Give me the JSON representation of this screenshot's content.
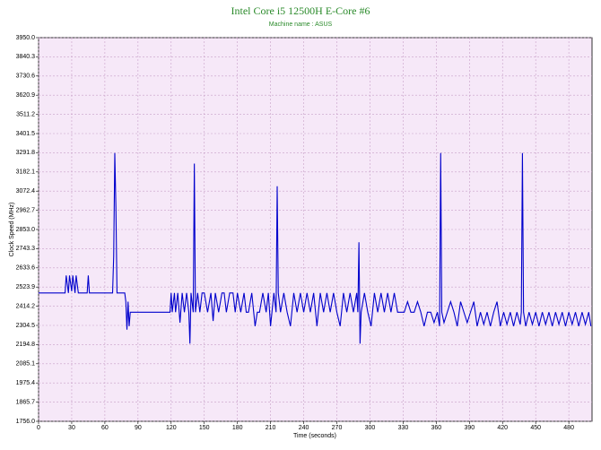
{
  "chart_data": {
    "type": "line",
    "title": "Intel Core i5 12500H E-Core #6",
    "subtitle": "Machine name : ASUS",
    "x_label": "Time (seconds)",
    "y_label": "Clock Speed (MHz)",
    "xlim": [
      0,
      501
    ],
    "xticks": [
      0,
      30,
      60,
      90,
      120,
      150,
      180,
      210,
      240,
      270,
      300,
      330,
      360,
      390,
      420,
      450,
      480
    ],
    "ylim": [
      1756,
      3950
    ],
    "yticks": [
      {
        "value": 1756,
        "label": "1756.0"
      },
      1865.7,
      1975.4,
      2085.1,
      2194.8,
      2304.5,
      2414.2,
      2523.9,
      2633.6,
      2743.3,
      {
        "value": 2853,
        "label": "2853.0"
      },
      2962.7,
      3072.4,
      3182.1,
      3291.8,
      3401.5,
      3511.2,
      3620.9,
      3730.6,
      3840.3,
      {
        "value": 3950,
        "label": "3950.0"
      }
    ],
    "grid": true,
    "x": [
      0,
      24,
      25,
      27,
      28,
      30,
      31,
      33,
      34,
      36,
      44,
      45,
      46,
      67,
      68,
      69,
      70,
      71,
      72,
      78,
      79,
      80,
      81,
      82,
      83,
      84,
      119,
      120,
      121,
      123,
      124,
      126,
      128,
      130,
      132,
      134,
      136,
      137,
      138,
      140,
      141,
      142,
      144,
      146,
      148,
      150,
      153,
      156,
      158,
      160,
      163,
      166,
      168,
      170,
      173,
      176,
      178,
      180,
      183,
      186,
      188,
      190,
      193,
      196,
      198,
      200,
      203,
      206,
      208,
      210,
      213,
      215,
      216,
      217,
      219,
      222,
      225,
      228,
      231,
      234,
      237,
      240,
      243,
      246,
      249,
      252,
      255,
      258,
      261,
      264,
      267,
      270,
      273,
      276,
      279,
      282,
      285,
      288,
      289,
      290,
      291,
      292,
      295,
      298,
      301,
      304,
      307,
      310,
      313,
      316,
      319,
      322,
      325,
      328,
      331,
      334,
      337,
      340,
      343,
      346,
      349,
      352,
      355,
      358,
      361,
      363,
      364,
      365,
      367,
      370,
      373,
      376,
      379,
      382,
      385,
      388,
      391,
      394,
      397,
      400,
      403,
      406,
      409,
      412,
      415,
      418,
      421,
      424,
      427,
      430,
      433,
      436,
      437,
      438,
      439,
      441,
      444,
      447,
      450,
      453,
      456,
      459,
      462,
      465,
      468,
      471,
      474,
      477,
      480,
      483,
      486,
      489,
      492,
      495,
      498,
      500
    ],
    "series": [
      {
        "name": "E-Core #6",
        "color": "#0000cc",
        "values": [
          2490,
          2490,
          2590,
          2490,
          2590,
          2500,
          2590,
          2490,
          2590,
          2490,
          2490,
          2590,
          2490,
          2490,
          2700,
          3290,
          2980,
          2490,
          2490,
          2490,
          2440,
          2280,
          2440,
          2300,
          2380,
          2380,
          2380,
          2490,
          2380,
          2490,
          2380,
          2490,
          2320,
          2490,
          2380,
          2490,
          2380,
          2200,
          2490,
          2380,
          3230,
          2380,
          2490,
          2380,
          2490,
          2490,
          2380,
          2490,
          2330,
          2490,
          2380,
          2490,
          2490,
          2380,
          2490,
          2490,
          2380,
          2490,
          2380,
          2490,
          2380,
          2380,
          2490,
          2300,
          2380,
          2380,
          2490,
          2380,
          2490,
          2300,
          2490,
          2380,
          3100,
          2490,
          2380,
          2490,
          2380,
          2300,
          2490,
          2380,
          2490,
          2380,
          2490,
          2380,
          2490,
          2300,
          2490,
          2380,
          2490,
          2380,
          2490,
          2380,
          2300,
          2490,
          2380,
          2490,
          2380,
          2490,
          2380,
          2780,
          2200,
          2380,
          2490,
          2380,
          2300,
          2490,
          2380,
          2490,
          2380,
          2490,
          2380,
          2490,
          2380,
          2380,
          2380,
          2440,
          2380,
          2380,
          2440,
          2380,
          2300,
          2380,
          2380,
          2320,
          2380,
          2300,
          3290,
          2380,
          2320,
          2380,
          2440,
          2380,
          2300,
          2440,
          2380,
          2320,
          2380,
          2440,
          2300,
          2380,
          2310,
          2380,
          2300,
          2380,
          2440,
          2300,
          2380,
          2310,
          2380,
          2300,
          2380,
          2310,
          2380,
          3290,
          2380,
          2300,
          2380,
          2310,
          2380,
          2300,
          2380,
          2310,
          2380,
          2300,
          2380,
          2310,
          2380,
          2300,
          2380,
          2310,
          2380,
          2300,
          2380,
          2310,
          2380,
          2300
        ]
      }
    ]
  }
}
